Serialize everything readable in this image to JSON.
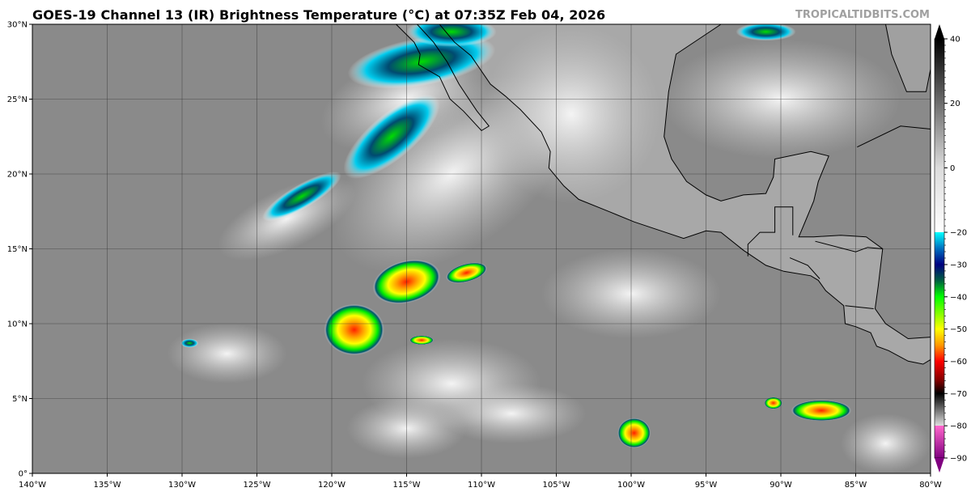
{
  "title": "GOES-19 Channel 13 (IR) Brightness Temperature (°C) at 07:35Z Feb 04, 2026",
  "brand": "TROPICALTIDBITS.COM",
  "map": {
    "lon_range": [
      -140,
      -80
    ],
    "lat_range": [
      0,
      30
    ],
    "grid": true,
    "lon_ticks": [
      "140°W",
      "135°W",
      "130°W",
      "125°W",
      "120°W",
      "115°W",
      "110°W",
      "105°W",
      "100°W",
      "95°W",
      "90°W",
      "85°W",
      "80°W"
    ],
    "lat_ticks": [
      "0°",
      "5°N",
      "10°N",
      "15°N",
      "20°N",
      "25°N",
      "30°N"
    ]
  },
  "colorbar": {
    "range": [
      -90,
      40
    ],
    "ticks": [
      "40",
      "20",
      "0",
      "−20",
      "−30",
      "−40",
      "−50",
      "−60",
      "−70",
      "−80",
      "−90"
    ],
    "tick_values": [
      40,
      20,
      0,
      -20,
      -30,
      -40,
      -50,
      -60,
      -70,
      -80,
      -90
    ],
    "stops": [
      {
        "v": 40,
        "c": "#000000"
      },
      {
        "v": 0,
        "c": "#dcdcdc"
      },
      {
        "v": -19.9,
        "c": "#ffffff"
      },
      {
        "v": -20,
        "c": "#00ffff"
      },
      {
        "v": -25,
        "c": "#0070c0"
      },
      {
        "v": -30,
        "c": "#000080"
      },
      {
        "v": -35,
        "c": "#006040"
      },
      {
        "v": -40,
        "c": "#00ff00"
      },
      {
        "v": -50,
        "c": "#ffff00"
      },
      {
        "v": -55,
        "c": "#ff9900"
      },
      {
        "v": -60,
        "c": "#ff0000"
      },
      {
        "v": -66,
        "c": "#800000"
      },
      {
        "v": -70,
        "c": "#000000"
      },
      {
        "v": -79.9,
        "c": "#dddddd"
      },
      {
        "v": -80,
        "c": "#ff66cc"
      },
      {
        "v": -90,
        "c": "#800080"
      }
    ]
  }
}
